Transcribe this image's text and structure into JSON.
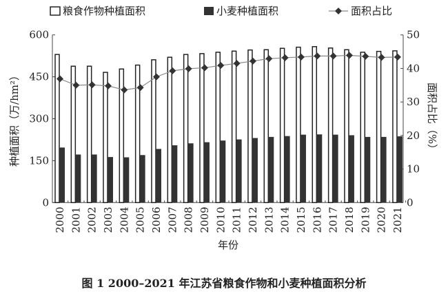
{
  "chart_data": {
    "type": "bar",
    "title": "图 1    2000–2021 年江苏省粮食作物和小麦种植面积分析",
    "xlabel": "年份",
    "ylabel": "种植面积（万/hm²）",
    "y2label": "面积占比（%）",
    "ylim": [
      0,
      600
    ],
    "y2lim": [
      0,
      50
    ],
    "yticks": [
      0,
      150,
      300,
      450,
      600
    ],
    "y2ticks": [
      0,
      10,
      20,
      30,
      40,
      50
    ],
    "legend_position": "top",
    "categories": [
      "2000",
      "2001",
      "2002",
      "2003",
      "2004",
      "2005",
      "2006",
      "2007",
      "2008",
      "2009",
      "2010",
      "2011",
      "2012",
      "2013",
      "2014",
      "2015",
      "2016",
      "2017",
      "2018",
      "2019",
      "2020",
      "2021"
    ],
    "series": [
      {
        "name": "粮食作物种植面积",
        "type": "bar",
        "axis": "left",
        "color": "#ffffff",
        "values": [
          530,
          488,
          488,
          466,
          478,
          492,
          511,
          520,
          530,
          533,
          538,
          542,
          546,
          547,
          552,
          556,
          558,
          553,
          547,
          538,
          541,
          543
        ]
      },
      {
        "name": "小麦种植面积",
        "type": "bar",
        "axis": "left",
        "color": "#333333",
        "values": [
          197,
          172,
          172,
          163,
          162,
          170,
          192,
          205,
          212,
          216,
          222,
          226,
          231,
          235,
          238,
          243,
          244,
          243,
          241,
          235,
          235,
          237
        ]
      },
      {
        "name": "面积占比",
        "type": "line",
        "axis": "right",
        "color": "#333333",
        "values": [
          36.9,
          35.0,
          35.1,
          34.8,
          33.6,
          34.3,
          37.5,
          39.3,
          39.9,
          40.2,
          40.9,
          41.5,
          42.2,
          42.9,
          43.2,
          43.4,
          43.7,
          43.7,
          43.9,
          43.6,
          43.3,
          43.4
        ]
      }
    ]
  }
}
